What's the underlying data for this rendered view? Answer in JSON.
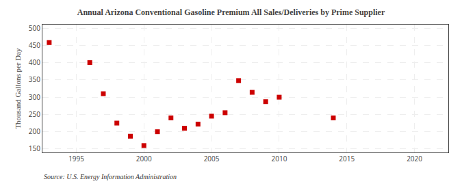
{
  "chart_data": {
    "type": "scatter",
    "title": "Annual Arizona Conventional Gasoline Premium All Sales/Deliveries by Prime Supplier",
    "ylabel": "Thousand Gallons per Day",
    "annotations": [
      "Source: U.S. Energy Information Administration"
    ],
    "x": [
      1993,
      1996,
      1997,
      1998,
      1999,
      2000,
      2001,
      2002,
      2003,
      2004,
      2005,
      2006,
      2007,
      2008,
      2009,
      2010,
      2014
    ],
    "values": [
      458,
      400,
      310,
      225,
      187,
      160,
      200,
      240,
      210,
      222,
      245,
      255,
      348,
      314,
      287,
      300,
      240
    ],
    "xlim": [
      1992.5,
      2022.5
    ],
    "ylim": [
      140,
      510
    ],
    "xticks": [
      1995,
      2000,
      2005,
      2010,
      2015,
      2020
    ],
    "yticks": [
      150,
      200,
      250,
      300,
      350,
      400,
      450,
      500
    ],
    "color": "#cc0000",
    "marker": "square",
    "grid": true
  }
}
